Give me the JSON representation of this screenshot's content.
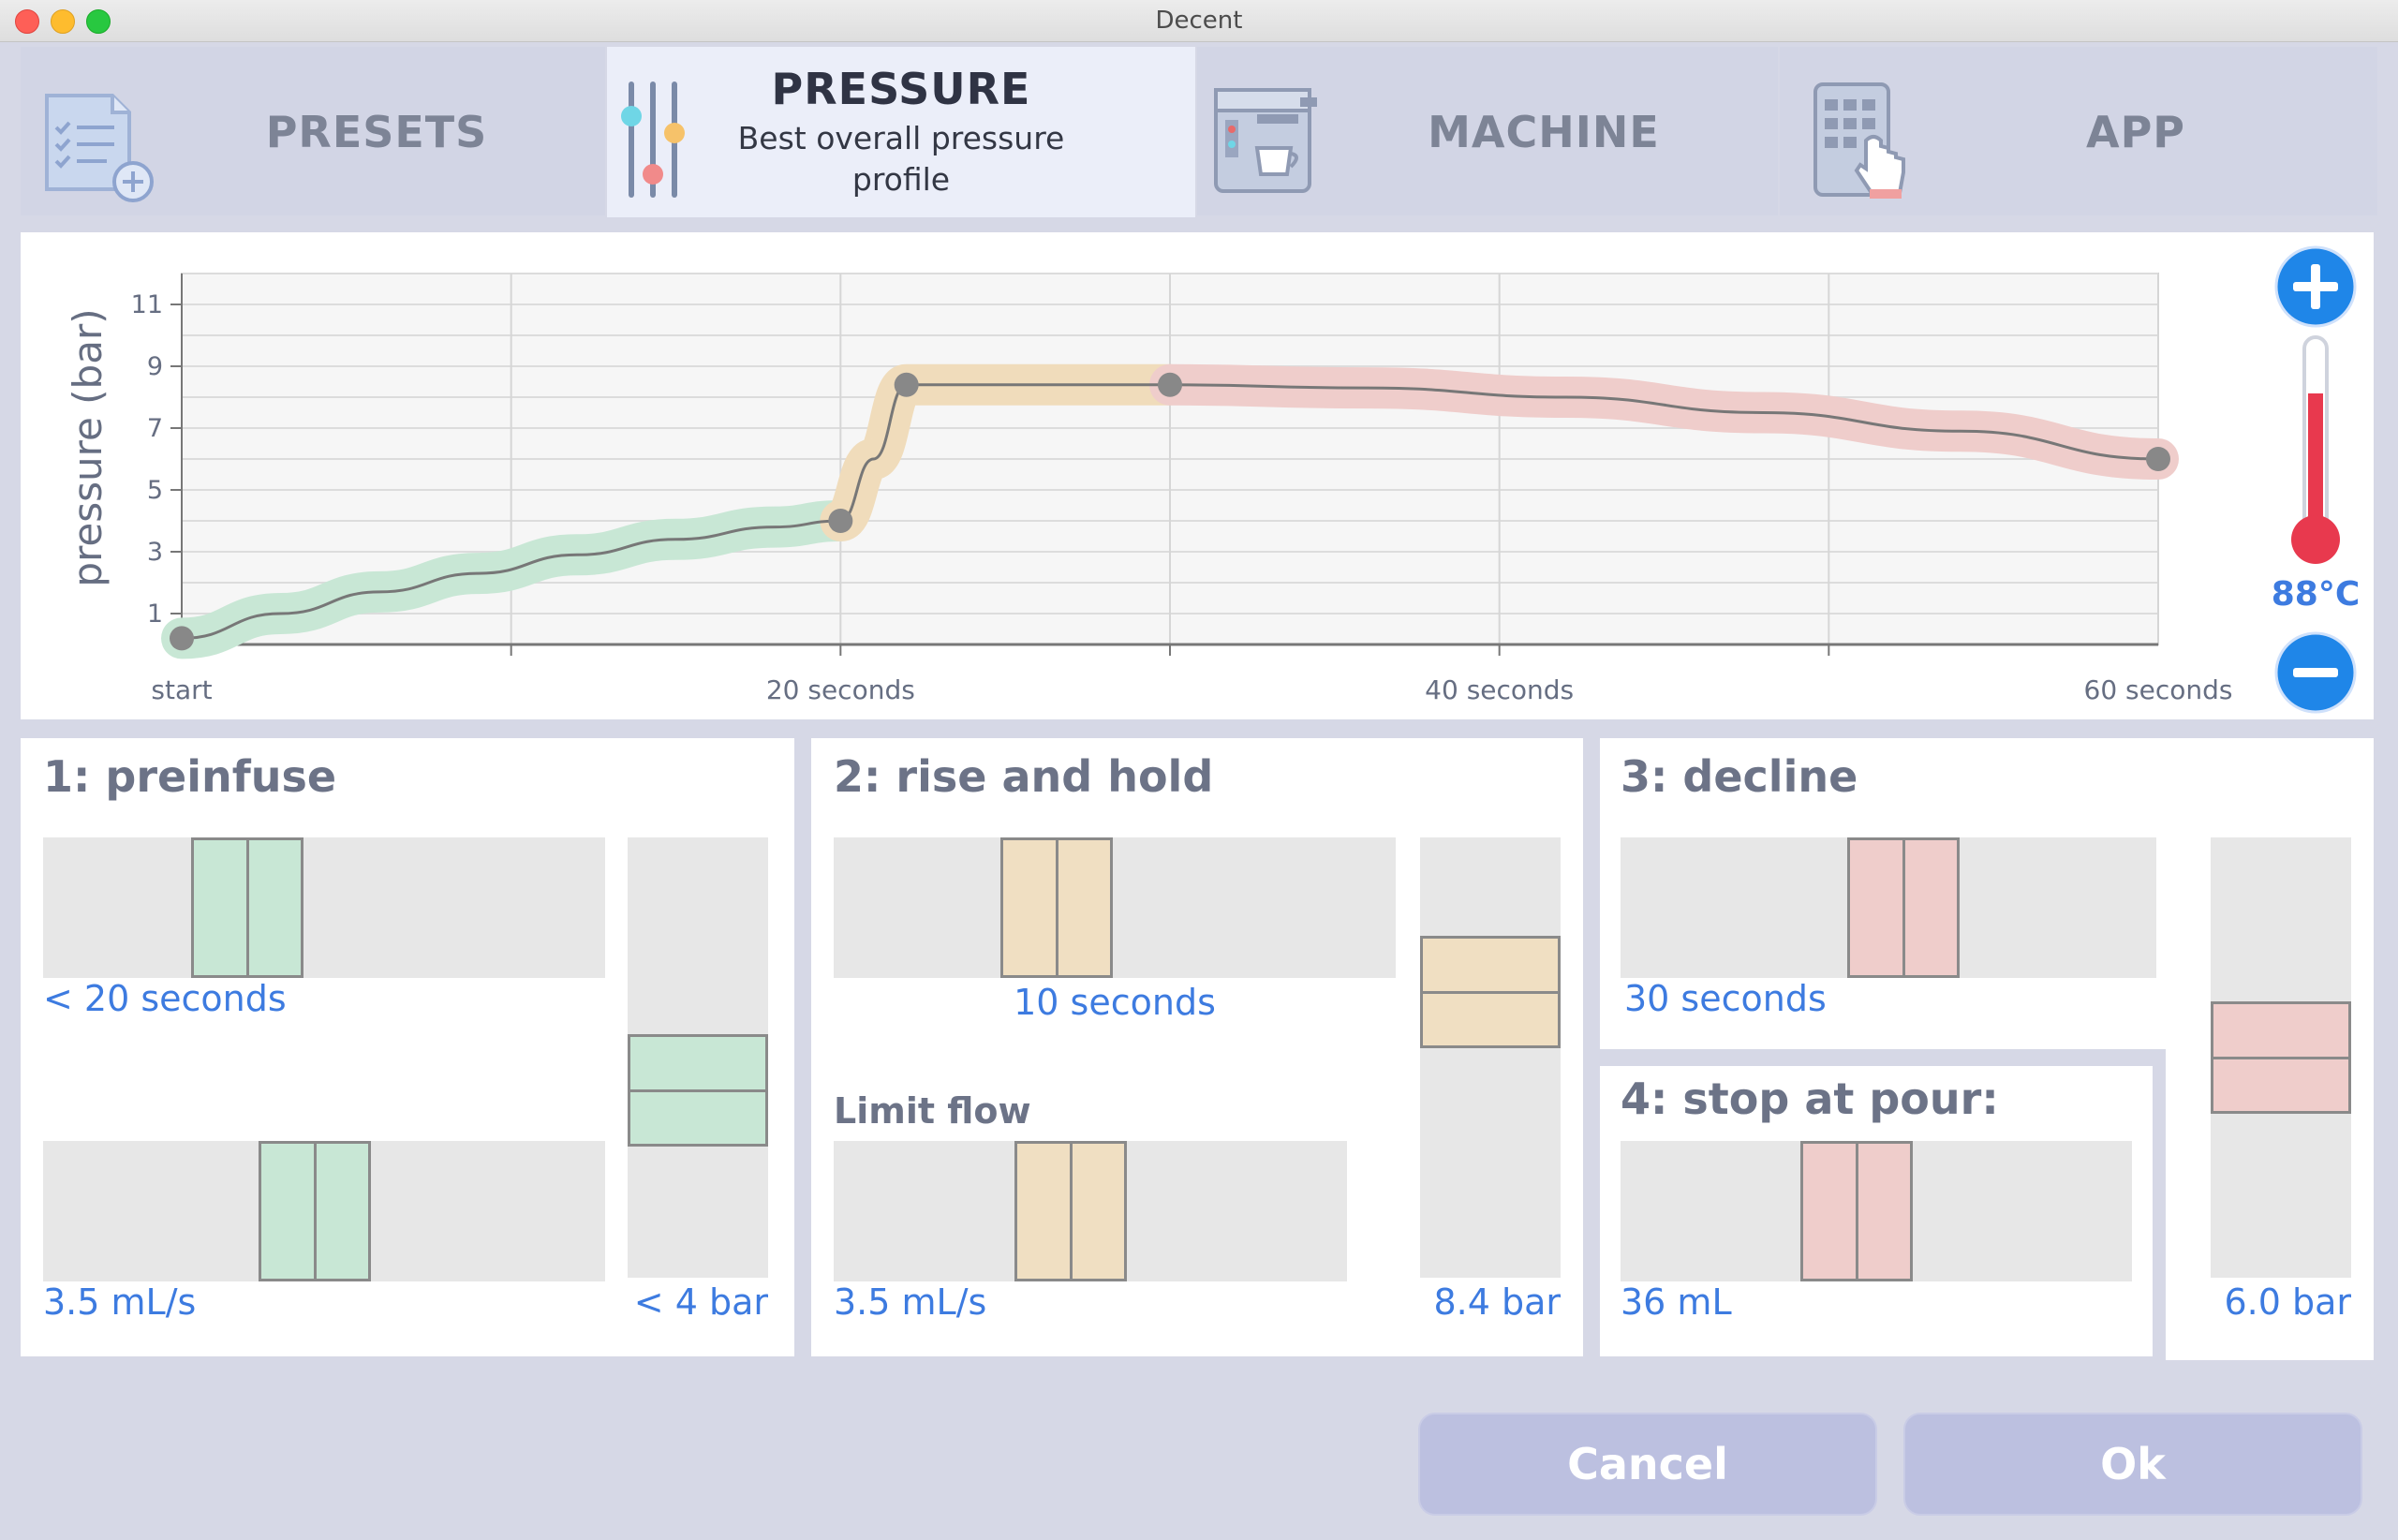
{
  "window": {
    "title": "Decent"
  },
  "tabs": [
    {
      "label": "PRESETS"
    },
    {
      "label": "PRESSURE",
      "sub1": "Best overall pressure",
      "sub2": "profile"
    },
    {
      "label": "MACHINE"
    },
    {
      "label": "APP"
    }
  ],
  "temperature": {
    "value": "88°C",
    "level": 0.75
  },
  "chart_data": {
    "type": "line",
    "ylabel": "pressure (bar)",
    "xlim": [
      0,
      60
    ],
    "ylim": [
      0,
      12
    ],
    "yticks": [
      "11",
      "9",
      "7",
      "5",
      "3",
      "1"
    ],
    "xtick_labels": [
      {
        "x": 0,
        "label": "start"
      },
      {
        "x": 20,
        "label": "20 seconds"
      },
      {
        "x": 40,
        "label": "40 seconds"
      },
      {
        "x": 60,
        "label": "60 seconds"
      }
    ],
    "series": [
      {
        "points": [
          [
            0,
            0.2
          ],
          [
            3,
            1.0
          ],
          [
            6,
            1.7
          ],
          [
            9,
            2.3
          ],
          [
            12,
            2.9
          ],
          [
            15,
            3.4
          ],
          [
            18,
            3.8
          ],
          [
            20,
            4.0
          ]
        ]
      },
      {
        "points": [
          [
            20,
            4.0
          ],
          [
            21,
            6.0
          ],
          [
            22,
            8.4
          ],
          [
            30,
            8.4
          ]
        ]
      },
      {
        "points": [
          [
            30,
            8.4
          ],
          [
            36,
            8.3
          ],
          [
            42,
            8.0
          ],
          [
            48,
            7.5
          ],
          [
            54,
            6.9
          ],
          [
            60,
            6.0
          ]
        ]
      }
    ],
    "markers": [
      [
        0,
        0.2
      ],
      [
        20,
        4.0
      ],
      [
        22,
        8.4
      ],
      [
        30,
        8.4
      ],
      [
        60,
        6.0
      ]
    ],
    "colors": [
      "#c8e7d5",
      "#f0dcbb",
      "#efcdcb"
    ],
    "grid": true
  },
  "steps": {
    "preinfuse": {
      "title": "1: preinfuse",
      "time_label": "< 20 seconds",
      "time_value": 0.33,
      "flow_label": "3.5 mL/s",
      "flow_value": 0.48,
      "pressure_label": "< 4 bar",
      "pressure_value": 0.4
    },
    "rise": {
      "title": "2: rise and hold",
      "time_label": "10 seconds",
      "time_value": 0.37,
      "limit_label": "Limit flow",
      "flow_label": "3.5 mL/s",
      "flow_value": 0.45,
      "pressure_label": "8.4 bar",
      "pressure_value": 0.7
    },
    "decline": {
      "title": "3: decline",
      "time_label": "30 seconds",
      "time_value": 0.5,
      "pressure_label": "6.0 bar",
      "pressure_value": 0.5
    },
    "stop": {
      "title": "4: stop at pour:",
      "volume_label": "36 mL",
      "volume_value": 0.45
    }
  },
  "buttons": {
    "cancel": "Cancel",
    "ok": "Ok"
  }
}
